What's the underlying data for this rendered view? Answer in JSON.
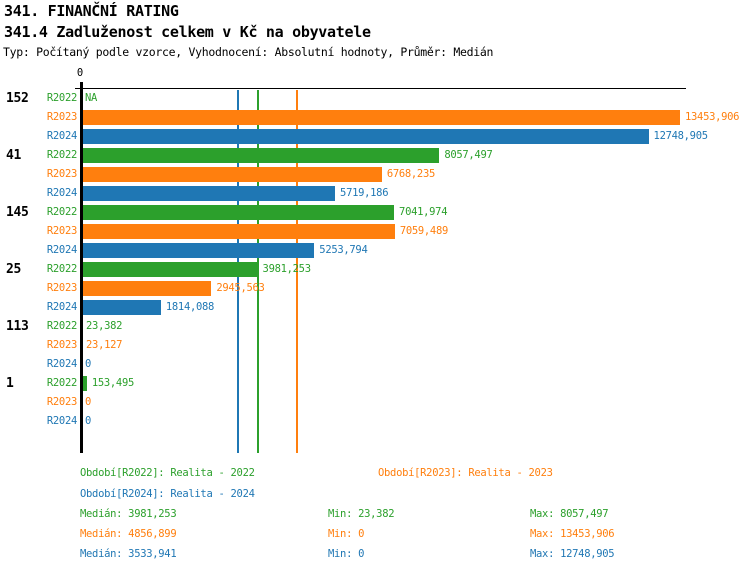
{
  "header": {
    "title": "341. FINANČNÍ RATING",
    "subtitle": "341.4 Zadluženost celkem v Kč na obyvatele",
    "meta": "Typ: Počítaný podle vzorce, Vyhodnocení: Absolutní hodnoty, Průměr: Medián"
  },
  "colors": {
    "axis": "#000000",
    "series": {
      "R2022": "#2ca02c",
      "R2023": "#ff7f0e",
      "R2024": "#1f77b4"
    }
  },
  "chart_data": {
    "type": "bar",
    "orientation": "horizontal",
    "axis_zero_label": "0",
    "xlim": [
      0,
      13550
    ],
    "grid": "median-lines-only",
    "series_labels": [
      "R2022",
      "R2023",
      "R2024"
    ],
    "groups": [
      {
        "label": "152",
        "rows": [
          {
            "series": "R2022",
            "value": null,
            "display": "NA"
          },
          {
            "series": "R2023",
            "value": 13453.906,
            "display": "13453,906"
          },
          {
            "series": "R2024",
            "value": 12748.905,
            "display": "12748,905"
          }
        ]
      },
      {
        "label": "41",
        "rows": [
          {
            "series": "R2022",
            "value": 8057.497,
            "display": "8057,497"
          },
          {
            "series": "R2023",
            "value": 6768.235,
            "display": "6768,235"
          },
          {
            "series": "R2024",
            "value": 5719.186,
            "display": "5719,186"
          }
        ]
      },
      {
        "label": "145",
        "rows": [
          {
            "series": "R2022",
            "value": 7041.974,
            "display": "7041,974"
          },
          {
            "series": "R2023",
            "value": 7059.489,
            "display": "7059,489"
          },
          {
            "series": "R2024",
            "value": 5253.794,
            "display": "5253,794"
          }
        ]
      },
      {
        "label": "25",
        "rows": [
          {
            "series": "R2022",
            "value": 3981.253,
            "display": "3981,253"
          },
          {
            "series": "R2023",
            "value": 2945.563,
            "display": "2945,563"
          },
          {
            "series": "R2024",
            "value": 1814.088,
            "display": "1814,088"
          }
        ]
      },
      {
        "label": "113",
        "rows": [
          {
            "series": "R2022",
            "value": 23.382,
            "display": "23,382"
          },
          {
            "series": "R2023",
            "value": 23.127,
            "display": "23,127"
          },
          {
            "series": "R2024",
            "value": 0,
            "display": "0"
          }
        ]
      },
      {
        "label": "1",
        "rows": [
          {
            "series": "R2022",
            "value": 153.495,
            "display": "153,495"
          },
          {
            "series": "R2023",
            "value": 0,
            "display": "0"
          },
          {
            "series": "R2024",
            "value": 0,
            "display": "0"
          }
        ]
      }
    ],
    "median_lines": [
      {
        "series": "R2022",
        "value": 3981.253
      },
      {
        "series": "R2023",
        "value": 4856.899
      },
      {
        "series": "R2024",
        "value": 3533.941
      }
    ]
  },
  "legend": {
    "period_r2022": "Období[R2022]: Realita - 2022",
    "period_r2023": "Období[R2023]: Realita - 2023",
    "period_r2024": "Období[R2024]: Realita - 2024",
    "stats": [
      {
        "series": "R2022",
        "median": "Medián: 3981,253",
        "min": "Min: 23,382",
        "max": "Max: 8057,497"
      },
      {
        "series": "R2023",
        "median": "Medián: 4856,899",
        "min": "Min: 0",
        "max": "Max: 13453,906"
      },
      {
        "series": "R2024",
        "median": "Medián: 3533,941",
        "min": "Min: 0",
        "max": "Max: 12748,905"
      }
    ]
  }
}
